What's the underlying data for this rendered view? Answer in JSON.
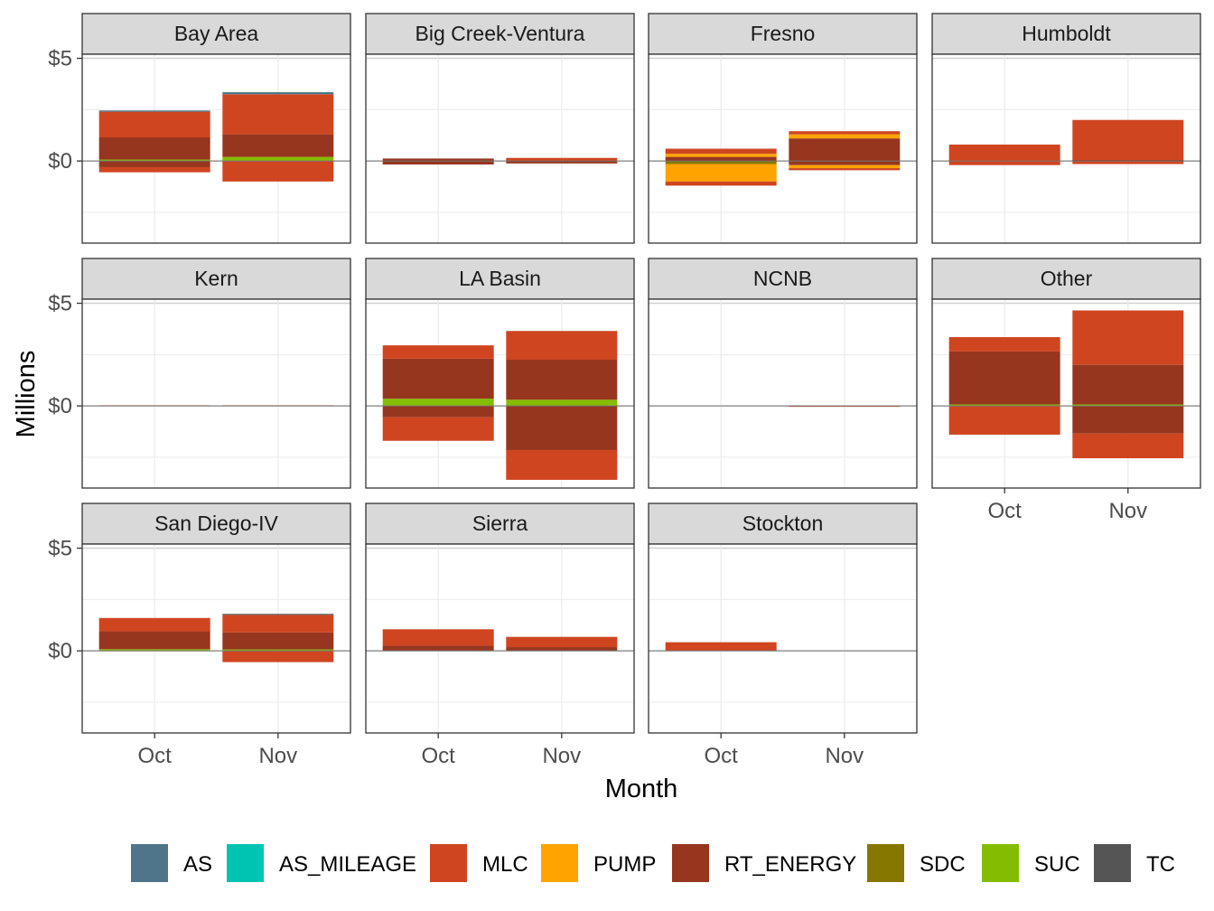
{
  "chart_data": {
    "type": "bar",
    "stacked": true,
    "layout": "facet-wrap",
    "facet_columns": 4,
    "xlabel": "Month",
    "ylabel": "Millions",
    "categories": [
      "Oct",
      "Nov"
    ],
    "y_ticks": [
      {
        "value": 5,
        "label": "$5"
      },
      {
        "value": 0,
        "label": "$0"
      }
    ],
    "ylim": [
      -4,
      5.2
    ],
    "grid": true,
    "legend_position": "bottom",
    "series": [
      {
        "name": "AS",
        "color": "#4e7589"
      },
      {
        "name": "AS_MILEAGE",
        "color": "#00c4b2"
      },
      {
        "name": "MLC",
        "color": "#cf4520"
      },
      {
        "name": "PUMP",
        "color": "#ffa300"
      },
      {
        "name": "RT_ENERGY",
        "color": "#96361f"
      },
      {
        "name": "SDC",
        "color": "#857700"
      },
      {
        "name": "SUC",
        "color": "#84bd00"
      },
      {
        "name": "TC",
        "color": "#555555"
      }
    ],
    "facets": [
      {
        "name": "Bay Area",
        "bars": [
          [
            {
              "s": "SUC",
              "lo": 0,
              "hi": 0.07
            },
            {
              "s": "RT_ENERGY",
              "lo": 0.07,
              "hi": 1.15
            },
            {
              "s": "MLC",
              "lo": 1.15,
              "hi": 2.4
            },
            {
              "s": "AS",
              "lo": 2.4,
              "hi": 2.46
            },
            {
              "s": "RT_ENERGY",
              "lo": -0.3,
              "hi": 0
            },
            {
              "s": "MLC",
              "lo": -0.55,
              "hi": -0.3
            }
          ],
          [
            {
              "s": "SUC",
              "lo": 0,
              "hi": 0.2
            },
            {
              "s": "RT_ENERGY",
              "lo": 0.2,
              "hi": 1.3
            },
            {
              "s": "MLC",
              "lo": 1.3,
              "hi": 3.25
            },
            {
              "s": "AS",
              "lo": 3.25,
              "hi": 3.35
            },
            {
              "s": "MLC",
              "lo": -1.0,
              "hi": 0
            }
          ]
        ]
      },
      {
        "name": "Big Creek-Ventura",
        "bars": [
          [
            {
              "s": "RT_ENERGY",
              "lo": 0,
              "hi": 0.12
            },
            {
              "s": "RT_ENERGY",
              "lo": -0.17,
              "hi": 0
            }
          ],
          [
            {
              "s": "MLC",
              "lo": 0,
              "hi": 0.15
            },
            {
              "s": "RT_ENERGY",
              "lo": -0.12,
              "hi": 0
            }
          ]
        ]
      },
      {
        "name": "Fresno",
        "bars": [
          [
            {
              "s": "RT_ENERGY",
              "lo": 0,
              "hi": 0.2
            },
            {
              "s": "PUMP",
              "lo": 0.2,
              "hi": 0.35
            },
            {
              "s": "MLC",
              "lo": 0.35,
              "hi": 0.6
            },
            {
              "s": "SDC",
              "lo": -0.15,
              "hi": 0
            },
            {
              "s": "PUMP",
              "lo": -1.0,
              "hi": -0.15
            },
            {
              "s": "MLC",
              "lo": -1.2,
              "hi": -1.0
            }
          ],
          [
            {
              "s": "RT_ENERGY",
              "lo": 0,
              "hi": 1.1
            },
            {
              "s": "PUMP",
              "lo": 1.1,
              "hi": 1.3
            },
            {
              "s": "MLC",
              "lo": 1.3,
              "hi": 1.45
            },
            {
              "s": "RT_ENERGY",
              "lo": -0.2,
              "hi": 0
            },
            {
              "s": "PUMP",
              "lo": -0.35,
              "hi": -0.2
            },
            {
              "s": "MLC",
              "lo": -0.45,
              "hi": -0.35
            }
          ]
        ]
      },
      {
        "name": "Humboldt",
        "bars": [
          [
            {
              "s": "MLC",
              "lo": 0,
              "hi": 0.8
            },
            {
              "s": "MLC",
              "lo": -0.2,
              "hi": 0
            }
          ],
          [
            {
              "s": "MLC",
              "lo": 0.05,
              "hi": 2.0
            },
            {
              "s": "RT_ENERGY",
              "lo": 0,
              "hi": 0.05
            },
            {
              "s": "MLC",
              "lo": -0.15,
              "hi": 0
            }
          ]
        ]
      },
      {
        "name": "Kern",
        "bars": [
          [
            {
              "s": "MLC",
              "lo": 0,
              "hi": 0.03
            }
          ],
          [
            {
              "s": "MLC",
              "lo": 0,
              "hi": 0.03
            }
          ]
        ]
      },
      {
        "name": "LA Basin",
        "bars": [
          [
            {
              "s": "SUC",
              "lo": 0,
              "hi": 0.35
            },
            {
              "s": "RT_ENERGY",
              "lo": 0.35,
              "hi": 2.3
            },
            {
              "s": "MLC",
              "lo": 2.3,
              "hi": 2.95
            },
            {
              "s": "RT_ENERGY",
              "lo": -0.55,
              "hi": 0
            },
            {
              "s": "MLC",
              "lo": -1.7,
              "hi": -0.55
            }
          ],
          [
            {
              "s": "SUC",
              "lo": 0,
              "hi": 0.3
            },
            {
              "s": "RT_ENERGY",
              "lo": 0.3,
              "hi": 2.25
            },
            {
              "s": "MLC",
              "lo": 2.25,
              "hi": 3.65
            },
            {
              "s": "RT_ENERGY",
              "lo": -2.15,
              "hi": 0
            },
            {
              "s": "MLC",
              "lo": -3.6,
              "hi": -2.15
            }
          ]
        ]
      },
      {
        "name": "NCNB",
        "bars": [
          [],
          [
            {
              "s": "MLC",
              "lo": -0.04,
              "hi": 0
            }
          ]
        ]
      },
      {
        "name": "Other",
        "bars": [
          [
            {
              "s": "SUC",
              "lo": 0,
              "hi": 0.07
            },
            {
              "s": "RT_ENERGY",
              "lo": 0.07,
              "hi": 2.65
            },
            {
              "s": "MLC",
              "lo": 2.65,
              "hi": 3.35
            },
            {
              "s": "MLC",
              "lo": -1.4,
              "hi": 0
            }
          ],
          [
            {
              "s": "SUC",
              "lo": 0,
              "hi": 0.07
            },
            {
              "s": "RT_ENERGY",
              "lo": 0.07,
              "hi": 2.0
            },
            {
              "s": "MLC",
              "lo": 2.0,
              "hi": 4.65
            },
            {
              "s": "RT_ENERGY",
              "lo": -1.35,
              "hi": 0
            },
            {
              "s": "MLC",
              "lo": -2.55,
              "hi": -1.35
            }
          ]
        ]
      },
      {
        "name": "San Diego-IV",
        "bars": [
          [
            {
              "s": "SUC",
              "lo": 0,
              "hi": 0.08
            },
            {
              "s": "RT_ENERGY",
              "lo": 0.08,
              "hi": 0.95
            },
            {
              "s": "MLC",
              "lo": 0.95,
              "hi": 1.6
            }
          ],
          [
            {
              "s": "SUC",
              "lo": 0,
              "hi": 0.07
            },
            {
              "s": "RT_ENERGY",
              "lo": 0.07,
              "hi": 0.9
            },
            {
              "s": "MLC",
              "lo": 0.9,
              "hi": 1.75
            },
            {
              "s": "TC",
              "lo": 1.75,
              "hi": 1.8
            },
            {
              "s": "MLC",
              "lo": -0.55,
              "hi": 0
            }
          ]
        ]
      },
      {
        "name": "Sierra",
        "bars": [
          [
            {
              "s": "RT_ENERGY",
              "lo": 0,
              "hi": 0.25
            },
            {
              "s": "MLC",
              "lo": 0.25,
              "hi": 1.05
            }
          ],
          [
            {
              "s": "RT_ENERGY",
              "lo": 0,
              "hi": 0.18
            },
            {
              "s": "MLC",
              "lo": 0.18,
              "hi": 0.68
            }
          ]
        ]
      },
      {
        "name": "Stockton",
        "bars": [
          [
            {
              "s": "MLC",
              "lo": 0,
              "hi": 0.42
            }
          ],
          []
        ]
      }
    ]
  }
}
